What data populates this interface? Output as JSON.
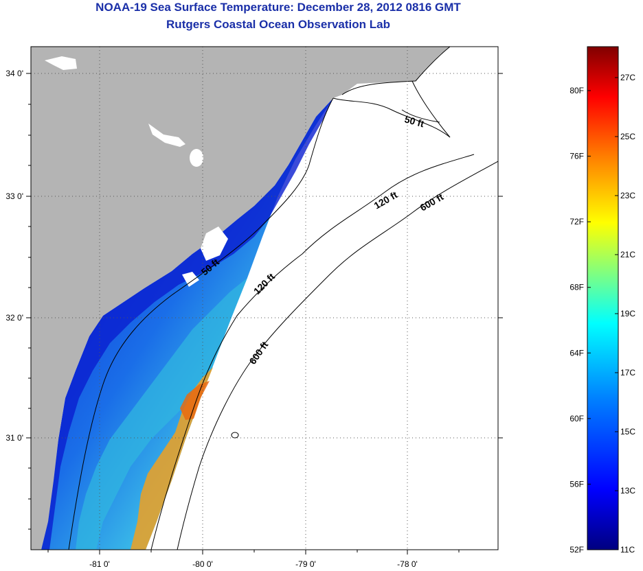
{
  "title": "NOAA-19 Sea Surface Temperature:  December 28, 2012 0816 GMT",
  "subtitle": "Rutgers Coastal Ocean Observation Lab",
  "map": {
    "lon_labels": [
      "-81 0'",
      "-80 0'",
      "-79 0'",
      "-78 0'"
    ],
    "lat_labels": [
      "34 0'",
      "33 0'",
      "32 0'",
      "31 0'"
    ],
    "contour_labels": [
      "50 ft",
      "120 ft",
      "600 ft",
      "120 ft",
      "600 ft",
      "50 ft"
    ],
    "land_color": "#b4b4b4",
    "nodata_color": "#ffffff"
  },
  "colorbar": {
    "fahrenheit_labels": [
      "80F",
      "76F",
      "72F",
      "68F",
      "64F",
      "60F",
      "56F",
      "52F"
    ],
    "celsius_labels": [
      "27C",
      "25C",
      "23C",
      "21C",
      "19C",
      "17C",
      "15C",
      "13C",
      "11C"
    ],
    "colors": [
      "#800000",
      "#ff0000",
      "#ff8000",
      "#ffff00",
      "#80ff80",
      "#00ffff",
      "#0080ff",
      "#0000ff",
      "#000080"
    ]
  }
}
